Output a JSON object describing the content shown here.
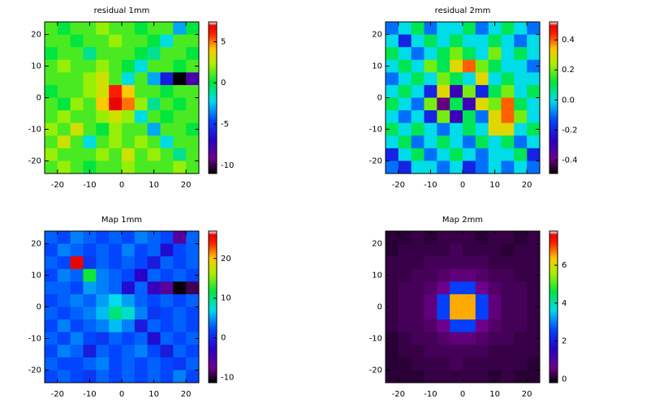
{
  "chart_data": [
    {
      "type": "heatmap",
      "title": "residual 1mm",
      "colormap": "rainbow",
      "x": [
        -22,
        -18,
        -14,
        -10,
        -6,
        -2,
        2,
        6,
        10,
        14,
        18,
        22
      ],
      "y": [
        22,
        18,
        14,
        10,
        6,
        2,
        -2,
        -6,
        -10,
        -14,
        -18,
        -22
      ],
      "z": [
        [
          1,
          0,
          1,
          1,
          2,
          1,
          1,
          0,
          1,
          1,
          -3,
          0
        ],
        [
          1,
          1,
          0,
          1,
          1,
          2,
          1,
          1,
          0,
          -2,
          1,
          1
        ],
        [
          0,
          1,
          1,
          -1,
          1,
          1,
          1,
          0,
          -1,
          1,
          1,
          0
        ],
        [
          1,
          2,
          1,
          1,
          2,
          1,
          0,
          -2,
          1,
          1,
          0,
          1
        ],
        [
          1,
          1,
          1,
          2,
          3,
          1,
          -2,
          1,
          -3,
          -6,
          -11,
          -8
        ],
        [
          0,
          1,
          1,
          2,
          3,
          6,
          4,
          1,
          1,
          0,
          1,
          1
        ],
        [
          1,
          0,
          2,
          1,
          4,
          7,
          5,
          2,
          -1,
          1,
          0,
          1
        ],
        [
          1,
          2,
          1,
          1,
          2,
          3,
          2,
          -2,
          1,
          0,
          1,
          1
        ],
        [
          2,
          1,
          3,
          1,
          0,
          2,
          1,
          1,
          -3,
          1,
          1,
          0
        ],
        [
          1,
          3,
          1,
          -2,
          1,
          2,
          1,
          2,
          1,
          -2,
          1,
          1
        ],
        [
          2,
          1,
          1,
          1,
          2,
          1,
          3,
          1,
          2,
          1,
          -1,
          1
        ],
        [
          1,
          2,
          1,
          0,
          1,
          1,
          2,
          1,
          1,
          1,
          2,
          1
        ]
      ],
      "xlim": [
        -24,
        24
      ],
      "ylim": [
        -24,
        24
      ],
      "xticks": [
        -20,
        -10,
        0,
        10,
        20
      ],
      "yticks": [
        -20,
        -10,
        0,
        10,
        20
      ],
      "zlim": [
        -11,
        7.4
      ],
      "zticks": [
        -10,
        -5,
        0,
        5
      ]
    },
    {
      "type": "heatmap",
      "title": "residual 2mm",
      "colormap": "rainbow",
      "x": [
        -22,
        -18,
        -14,
        -10,
        -6,
        -2,
        2,
        6,
        10,
        14,
        18,
        22
      ],
      "y": [
        22,
        18,
        14,
        10,
        6,
        2,
        -2,
        -6,
        -10,
        -14,
        -18,
        -22
      ],
      "z": [
        [
          -0.1,
          0,
          0.1,
          -0.1,
          0,
          0,
          0.1,
          -0.1,
          0,
          0.1,
          0,
          -0.1
        ],
        [
          0,
          -0.2,
          0,
          0.1,
          0,
          0.1,
          0,
          0,
          0.1,
          0,
          -0.1,
          0
        ],
        [
          0.1,
          0,
          -0.1,
          0,
          0.1,
          0.2,
          0.1,
          0,
          0.2,
          0,
          0.1,
          0
        ],
        [
          0,
          0.1,
          0,
          0.2,
          0.1,
          0.3,
          0.4,
          0.2,
          0.1,
          0,
          0,
          -0.1
        ],
        [
          -0.1,
          0,
          0.1,
          0,
          0.2,
          0.1,
          0,
          0.3,
          0,
          0.1,
          0,
          0
        ],
        [
          0,
          0.1,
          0,
          -0.2,
          0.3,
          -0.3,
          0.2,
          -0.2,
          0.1,
          0.2,
          0,
          0.1
        ],
        [
          0.1,
          0,
          -0.1,
          0.2,
          -0.4,
          0.1,
          -0.3,
          0.3,
          0.2,
          0.4,
          0.1,
          0
        ],
        [
          0,
          -0.1,
          0,
          -0.2,
          0.2,
          -0.3,
          0.1,
          -0.1,
          0.3,
          0.4,
          0.2,
          0
        ],
        [
          0.1,
          0,
          0.1,
          0,
          -0.1,
          0,
          0.1,
          0,
          0.3,
          0.3,
          0,
          0.1
        ],
        [
          0,
          0.1,
          -0.1,
          0,
          0.1,
          0,
          -0.1,
          0.1,
          0,
          0.1,
          -0.1,
          0
        ],
        [
          -0.2,
          0,
          0.1,
          -0.1,
          0,
          0.1,
          0,
          -0.1,
          0,
          0,
          0.1,
          -0.2
        ],
        [
          -0.1,
          -0.2,
          0,
          0,
          -0.1,
          0,
          -0.2,
          -0.1,
          0,
          -0.1,
          0,
          -0.1
        ]
      ],
      "xlim": [
        -24,
        24
      ],
      "ylim": [
        -24,
        24
      ],
      "xticks": [
        -20,
        -10,
        0,
        10,
        20
      ],
      "yticks": [
        -20,
        -10,
        0,
        10,
        20
      ],
      "zlim": [
        -0.49,
        0.52
      ],
      "zticks": [
        -0.4,
        -0.2,
        {
          "value": 0,
          "label": "0.0"
        },
        0.2,
        0.4
      ]
    },
    {
      "type": "heatmap",
      "title": "Map 1mm",
      "colormap": "rainbow",
      "x": [
        -22,
        -18,
        -14,
        -10,
        -6,
        -2,
        2,
        6,
        10,
        14,
        18,
        22
      ],
      "y": [
        22,
        18,
        14,
        10,
        6,
        2,
        -2,
        -6,
        -10,
        -14,
        -18,
        -22
      ],
      "z": [
        [
          3,
          2,
          4,
          3,
          2,
          3,
          2,
          4,
          3,
          2,
          -6,
          3
        ],
        [
          2,
          4,
          3,
          2,
          3,
          2,
          4,
          2,
          3,
          -2,
          2,
          3
        ],
        [
          3,
          2,
          26,
          1,
          3,
          2,
          3,
          2,
          -1,
          3,
          2,
          3
        ],
        [
          2,
          4,
          3,
          12,
          4,
          3,
          2,
          -3,
          3,
          2,
          3,
          2
        ],
        [
          3,
          3,
          2,
          5,
          4,
          3,
          -2,
          3,
          -4,
          -6,
          -11,
          -9
        ],
        [
          2,
          3,
          4,
          3,
          5,
          7,
          5,
          3,
          2,
          3,
          2,
          3
        ],
        [
          3,
          2,
          3,
          4,
          6,
          10,
          8,
          4,
          1,
          2,
          3,
          2
        ],
        [
          2,
          4,
          2,
          3,
          4,
          6,
          4,
          -1,
          3,
          2,
          3,
          2
        ],
        [
          3,
          2,
          4,
          2,
          1,
          3,
          2,
          3,
          -2,
          3,
          2,
          3
        ],
        [
          2,
          4,
          3,
          -1,
          3,
          2,
          3,
          4,
          2,
          -1,
          3,
          2
        ],
        [
          3,
          2,
          2,
          3,
          4,
          2,
          3,
          2,
          3,
          2,
          1,
          3
        ],
        [
          2,
          3,
          2,
          1,
          3,
          2,
          3,
          2,
          3,
          2,
          4,
          2
        ]
      ],
      "xlim": [
        -24,
        24
      ],
      "ylim": [
        -24,
        24
      ],
      "xticks": [
        -20,
        -10,
        0,
        10,
        20
      ],
      "yticks": [
        -20,
        -10,
        0,
        10,
        20
      ],
      "zlim": [
        -11.3,
        26.9
      ],
      "zticks": [
        -10,
        0,
        10,
        20
      ]
    },
    {
      "type": "heatmap",
      "title": "Map 2mm",
      "colormap": "rainbow",
      "x": [
        -22,
        -18,
        -14,
        -10,
        -6,
        -2,
        2,
        6,
        10,
        14,
        18,
        22
      ],
      "y": [
        22,
        18,
        14,
        10,
        6,
        2,
        -2,
        -6,
        -10,
        -14,
        -18,
        -22
      ],
      "z": [
        [
          0.1,
          0.1,
          0.2,
          0.1,
          0.2,
          0.2,
          0.2,
          0.1,
          0.2,
          0.2,
          0.1,
          0.2
        ],
        [
          0.1,
          0.2,
          0.2,
          0.2,
          0.2,
          0.3,
          0.2,
          0.2,
          0.2,
          0.1,
          0.2,
          0.2
        ],
        [
          0.2,
          0.2,
          0.2,
          0.3,
          0.3,
          0.3,
          0.3,
          0.3,
          0.2,
          0.2,
          0.2,
          0.2
        ],
        [
          0.2,
          0.2,
          0.3,
          0.3,
          0.4,
          0.5,
          0.5,
          0.4,
          0.3,
          0.3,
          0.2,
          0.2
        ],
        [
          0.2,
          0.3,
          0.3,
          0.4,
          0.6,
          2.5,
          2.5,
          0.6,
          0.4,
          0.3,
          0.3,
          0.2
        ],
        [
          0.2,
          0.3,
          0.3,
          0.5,
          2.5,
          6.5,
          6.5,
          2.5,
          0.5,
          0.3,
          0.3,
          0.2
        ],
        [
          0.2,
          0.3,
          0.3,
          0.5,
          2.5,
          6.5,
          6.5,
          2.5,
          0.5,
          0.3,
          0.3,
          0.2
        ],
        [
          0.2,
          0.3,
          0.3,
          0.4,
          0.6,
          2.5,
          2.5,
          0.6,
          0.4,
          0.3,
          0.3,
          0.2
        ],
        [
          0.1,
          0.2,
          0.3,
          0.3,
          0.4,
          0.5,
          0.5,
          0.4,
          0.3,
          0.3,
          0.2,
          0.2
        ],
        [
          0.1,
          0.2,
          0.2,
          0.3,
          0.3,
          0.3,
          0.3,
          0.3,
          0.2,
          0.2,
          0.2,
          0.2
        ],
        [
          0.1,
          0.1,
          0.2,
          0.2,
          0.2,
          0.3,
          0.2,
          0.2,
          0.2,
          0.2,
          0.2,
          0.1
        ],
        [
          0.1,
          0.1,
          0.1,
          0.2,
          0.2,
          0.2,
          0.2,
          0.2,
          0.1,
          0.2,
          0.1,
          0.1
        ]
      ],
      "xlim": [
        -24,
        24
      ],
      "ylim": [
        -24,
        24
      ],
      "xticks": [
        -20,
        -10,
        0,
        10,
        20
      ],
      "yticks": [
        -20,
        -10,
        0,
        10,
        20
      ],
      "zlim": [
        -0.2,
        7.8
      ],
      "zticks": [
        0,
        2,
        4,
        6
      ]
    }
  ]
}
